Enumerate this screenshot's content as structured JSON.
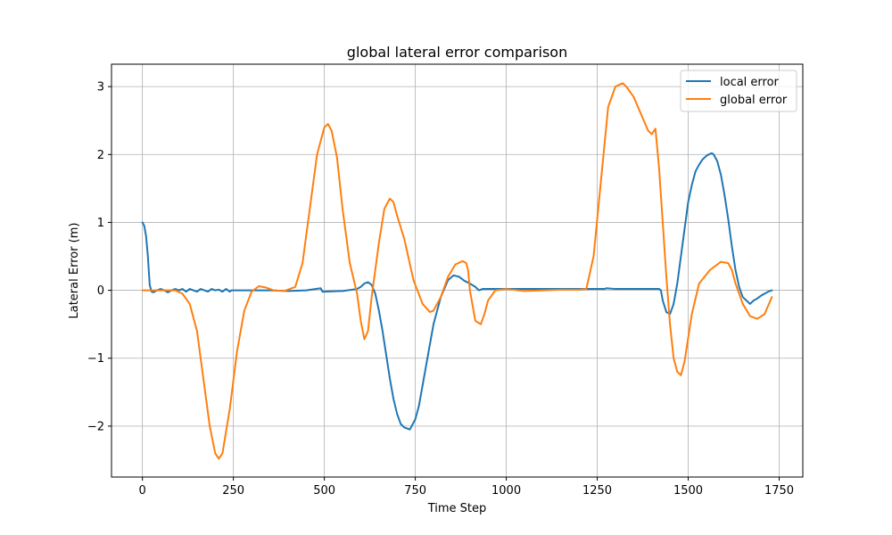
{
  "chart_data": {
    "type": "line",
    "title": "global lateral error comparison",
    "xlabel": "Time Step",
    "ylabel": "Lateral Error (m)",
    "xlim": [
      -85,
      1815
    ],
    "ylim": [
      -2.75,
      3.33
    ],
    "xticks": [
      0,
      250,
      500,
      750,
      1000,
      1250,
      1500,
      1750
    ],
    "yticks": [
      3,
      2,
      1,
      0,
      -1,
      -2
    ],
    "xtick_labels": [
      "0",
      "250",
      "500",
      "750",
      "1000",
      "1250",
      "1500",
      "1750"
    ],
    "ytick_labels": [
      "3",
      "2",
      "1",
      "0",
      "−1",
      "−2"
    ],
    "grid": true,
    "legend_position": "top-right",
    "series": [
      {
        "name": "local error",
        "color": "#1f77b4",
        "x": [
          0,
          5,
          10,
          15,
          20,
          25,
          30,
          40,
          50,
          60,
          70,
          80,
          90,
          100,
          110,
          120,
          130,
          140,
          150,
          160,
          170,
          180,
          190,
          200,
          210,
          220,
          230,
          240,
          245,
          250,
          260,
          300,
          350,
          400,
          450,
          490,
          495,
          500,
          550,
          590,
          600,
          610,
          620,
          630,
          640,
          650,
          660,
          670,
          680,
          690,
          700,
          710,
          720,
          735,
          750,
          760,
          780,
          800,
          820,
          840,
          855,
          870,
          885,
          900,
          915,
          925,
          935,
          1000,
          1100,
          1200,
          1270,
          1275,
          1300,
          1350,
          1400,
          1420,
          1425,
          1430,
          1440,
          1450,
          1460,
          1470,
          1480,
          1490,
          1500,
          1510,
          1520,
          1530,
          1540,
          1550,
          1560,
          1565,
          1570,
          1580,
          1590,
          1600,
          1610,
          1620,
          1630,
          1640,
          1650,
          1660,
          1670,
          1680,
          1690,
          1700,
          1710,
          1720,
          1730
        ],
        "y": [
          1.0,
          0.95,
          0.8,
          0.5,
          0.08,
          -0.02,
          -0.03,
          0.0,
          0.02,
          0.0,
          -0.03,
          0.0,
          0.02,
          0.0,
          0.02,
          -0.02,
          0.02,
          0.0,
          -0.02,
          0.02,
          0.0,
          -0.02,
          0.02,
          0.0,
          0.01,
          -0.02,
          0.02,
          -0.02,
          0.0,
          0.0,
          0.0,
          0.0,
          0.0,
          -0.01,
          0.0,
          0.03,
          -0.02,
          -0.02,
          -0.01,
          0.02,
          0.05,
          0.1,
          0.12,
          0.08,
          -0.05,
          -0.3,
          -0.6,
          -0.95,
          -1.3,
          -1.6,
          -1.82,
          -1.97,
          -2.02,
          -2.05,
          -1.9,
          -1.7,
          -1.1,
          -0.5,
          -0.1,
          0.15,
          0.22,
          0.2,
          0.14,
          0.1,
          0.05,
          0.0,
          0.02,
          0.02,
          0.02,
          0.02,
          0.02,
          0.03,
          0.02,
          0.02,
          0.02,
          0.02,
          0.0,
          -0.15,
          -0.32,
          -0.35,
          -0.2,
          0.1,
          0.5,
          0.9,
          1.3,
          1.55,
          1.75,
          1.85,
          1.93,
          1.98,
          2.01,
          2.02,
          2.0,
          1.9,
          1.7,
          1.4,
          1.05,
          0.65,
          0.3,
          0.05,
          -0.1,
          -0.15,
          -0.2,
          -0.15,
          -0.12,
          -0.08,
          -0.05,
          -0.02,
          0.0
        ]
      },
      {
        "name": "global error",
        "color": "#ff7f0e",
        "x": [
          0,
          30,
          60,
          90,
          110,
          130,
          150,
          170,
          185,
          200,
          210,
          220,
          240,
          260,
          280,
          300,
          320,
          340,
          360,
          390,
          420,
          440,
          460,
          480,
          500,
          510,
          520,
          535,
          550,
          570,
          590,
          600,
          610,
          620,
          630,
          650,
          665,
          680,
          690,
          700,
          720,
          745,
          770,
          790,
          800,
          820,
          840,
          860,
          880,
          890,
          895,
          900,
          915,
          930,
          940,
          950,
          970,
          1000,
          1050,
          1100,
          1150,
          1200,
          1220,
          1240,
          1260,
          1280,
          1300,
          1320,
          1330,
          1350,
          1370,
          1390,
          1400,
          1410,
          1420,
          1430,
          1440,
          1450,
          1460,
          1470,
          1480,
          1490,
          1500,
          1510,
          1530,
          1560,
          1590,
          1610,
          1620,
          1630,
          1650,
          1670,
          1690,
          1710,
          1730
        ],
        "y": [
          0.0,
          0.0,
          0.0,
          0.0,
          -0.05,
          -0.2,
          -0.6,
          -1.4,
          -2.0,
          -2.4,
          -2.48,
          -2.4,
          -1.75,
          -0.9,
          -0.3,
          -0.02,
          0.06,
          0.04,
          0.0,
          -0.01,
          0.05,
          0.4,
          1.2,
          2.0,
          2.4,
          2.45,
          2.35,
          1.95,
          1.2,
          0.4,
          -0.05,
          -0.45,
          -0.72,
          -0.6,
          -0.1,
          0.7,
          1.2,
          1.35,
          1.3,
          1.1,
          0.75,
          0.15,
          -0.2,
          -0.32,
          -0.3,
          -0.1,
          0.2,
          0.38,
          0.43,
          0.4,
          0.3,
          0.0,
          -0.45,
          -0.5,
          -0.35,
          -0.15,
          0.0,
          0.02,
          -0.01,
          0.0,
          0.01,
          0.01,
          0.02,
          0.5,
          1.6,
          2.7,
          3.0,
          3.05,
          3.0,
          2.85,
          2.6,
          2.35,
          2.3,
          2.38,
          1.8,
          1.0,
          0.2,
          -0.5,
          -1.0,
          -1.2,
          -1.25,
          -1.05,
          -0.7,
          -0.35,
          0.1,
          0.3,
          0.42,
          0.4,
          0.3,
          0.1,
          -0.2,
          -0.38,
          -0.42,
          -0.35,
          -0.1
        ]
      }
    ]
  }
}
